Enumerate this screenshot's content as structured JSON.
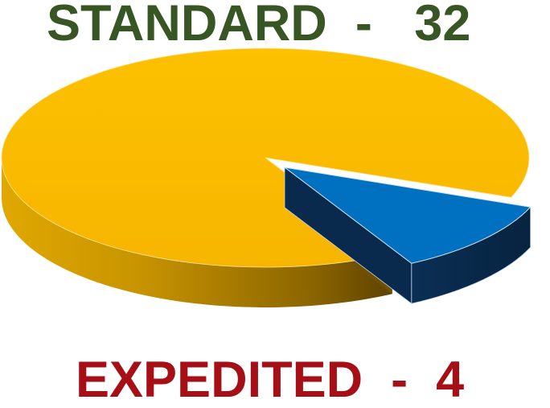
{
  "chart_data": {
    "type": "pie",
    "style": "3d-exploded",
    "title": "",
    "categories": [
      "STANDARD",
      "EXPEDITED"
    ],
    "values": [
      32,
      4
    ],
    "colors": [
      "#FABA00",
      "#0070C0"
    ],
    "exploded": [
      false,
      true
    ],
    "labels": [
      {
        "text": "STANDARD  -   32",
        "color": "#375623"
      },
      {
        "text": "EXPEDITED  -  4",
        "color": "#A50F15"
      }
    ]
  }
}
